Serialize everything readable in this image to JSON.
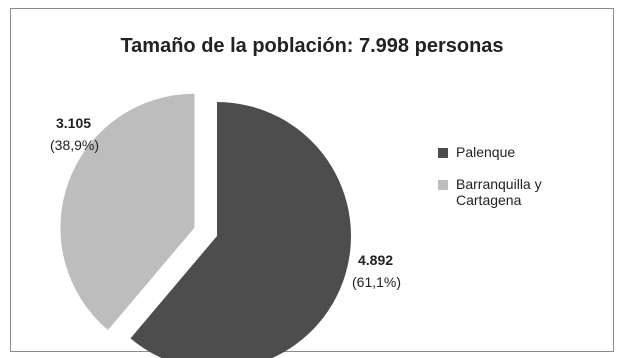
{
  "chart_data": {
    "type": "pie",
    "title": "Tamaño de la población: 7.998 personas",
    "slices": [
      {
        "label": "Palenque",
        "value": 4892,
        "value_label": "4.892",
        "percent_label": "(61,1%)",
        "color": "#4d4d4d",
        "exploded": false
      },
      {
        "label": "Barranquilla y Cartagena",
        "value": 3105,
        "value_label": "3.105",
        "percent_label": "(38,9%)",
        "color": "#bdbdbd",
        "exploded": true
      }
    ],
    "legend": {
      "position": "right",
      "items": [
        {
          "label": "Palenque",
          "color": "#4d4d4d"
        },
        {
          "label": "Barranquilla y Cartagena",
          "color": "#bdbdbd"
        }
      ]
    }
  }
}
